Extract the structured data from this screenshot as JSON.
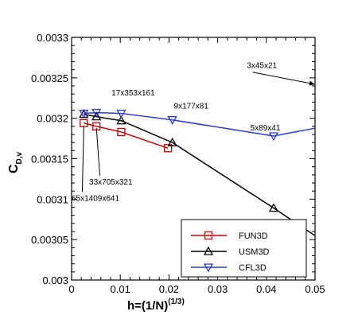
{
  "chart_data": {
    "type": "line",
    "xlabel": "h=(1/N)",
    "xlabel_superscript": "(1/3)",
    "ylabel": "C",
    "ylabel_subscript": "D,v",
    "xlim": [
      0,
      0.05
    ],
    "ylim": [
      0.003,
      0.0033
    ],
    "x_ticks": [
      0,
      0.01,
      0.02,
      0.03,
      0.04,
      0.05
    ],
    "x_tick_labels": [
      "0",
      "0.01",
      "0.02",
      "0.03",
      "0.04",
      "0.05"
    ],
    "y_ticks": [
      0.003,
      0.00305,
      0.0031,
      0.00315,
      0.0032,
      0.00325,
      0.0033
    ],
    "y_tick_labels": [
      "0.003",
      "0.00305",
      "0.0031",
      "0.00315",
      "0.0032",
      "0.00325",
      "0.0033"
    ],
    "grid": false,
    "legend_position": "bottom-right",
    "series": [
      {
        "name": "FUN3D",
        "color": "#c00000",
        "marker": "square",
        "x": [
          0.0025,
          0.0051,
          0.0102,
          0.0198
        ],
        "y": [
          0.003194,
          0.00319,
          0.003183,
          0.003163
        ]
      },
      {
        "name": "USM3D",
        "color": "#000000",
        "marker": "triangle-up",
        "x": [
          0.0025,
          0.0051,
          0.0102,
          0.0207,
          0.0415,
          0.0502
        ],
        "y": [
          0.003205,
          0.003202,
          0.003197,
          0.00317,
          0.003089,
          0.003054
        ]
      },
      {
        "name": "CFL3D",
        "color": "#2a3ccf",
        "marker": "triangle-down",
        "x": [
          0.0025,
          0.0051,
          0.0102,
          0.0207,
          0.0415,
          0.0502
        ],
        "y": [
          0.003206,
          0.003207,
          0.003206,
          0.003198,
          0.003178,
          0.003188
        ]
      }
    ],
    "annotations": [
      {
        "text": "3x45x21",
        "x": 0.036,
        "y": 0.003262
      },
      {
        "text": "17x353x161",
        "x": 0.0082,
        "y": 0.003228
      },
      {
        "text": "9x177x81",
        "x": 0.021,
        "y": 0.003212
      },
      {
        "text": "5x89x41",
        "x": 0.0367,
        "y": 0.003185
      },
      {
        "text": "33x705x321",
        "x": 0.0036,
        "y": 0.003118
      },
      {
        "text": "65x1409x641",
        "x": 0.0,
        "y": 0.003098
      }
    ]
  }
}
